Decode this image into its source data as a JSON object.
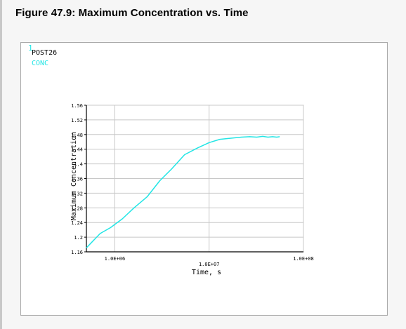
{
  "page": {
    "figure_title": "Figure 47.9: Maximum Concentration vs. Time"
  },
  "plot_window": {
    "window_number": "1",
    "program_label": "POST26",
    "legend_label": "CONC"
  },
  "colors": {
    "curve": "#22e5e5",
    "window_number": "#22e5e5",
    "legend": "#22e5e5",
    "grid": "#c8c8c8",
    "axis": "#000000"
  },
  "chart_data": {
    "type": "line",
    "xscale": "log",
    "xlim": [
      500000,
      100000000
    ],
    "ylim": [
      1.16,
      1.56
    ],
    "xlabel": "Time, s",
    "ylabel": "Maximum Concentration",
    "xticks": [
      {
        "value": 1000000,
        "label": "1.0E+06"
      },
      {
        "value": 10000000,
        "label": "1.0E+07"
      },
      {
        "value": 100000000,
        "label": "1.0E+08"
      }
    ],
    "yticks": [
      {
        "value": 1.16,
        "label": "1.16"
      },
      {
        "value": 1.2,
        "label": "1.2"
      },
      {
        "value": 1.24,
        "label": "1.24"
      },
      {
        "value": 1.28,
        "label": "1.28"
      },
      {
        "value": 1.32,
        "label": "1.32"
      },
      {
        "value": 1.36,
        "label": "1.36"
      },
      {
        "value": 1.4,
        "label": "1.4"
      },
      {
        "value": 1.44,
        "label": "1.44"
      },
      {
        "value": 1.48,
        "label": "1.48"
      },
      {
        "value": 1.52,
        "label": "1.52"
      },
      {
        "value": 1.56,
        "label": "1.56"
      }
    ],
    "grid": true,
    "legend_position": "top-left",
    "series": [
      {
        "name": "CONC",
        "x": [
          500000,
          700000,
          900000,
          1200000,
          1600000,
          2200000,
          3000000,
          4000000,
          5500000,
          7500000,
          10000000,
          13000000,
          17000000,
          22000000,
          27000000,
          32000000,
          37000000,
          42000000,
          47000000,
          52000000,
          56000000
        ],
        "y": [
          1.171,
          1.21,
          1.226,
          1.25,
          1.28,
          1.31,
          1.354,
          1.386,
          1.425,
          1.443,
          1.458,
          1.467,
          1.47,
          1.473,
          1.474,
          1.473,
          1.475,
          1.473,
          1.474,
          1.473,
          1.474
        ]
      }
    ]
  }
}
